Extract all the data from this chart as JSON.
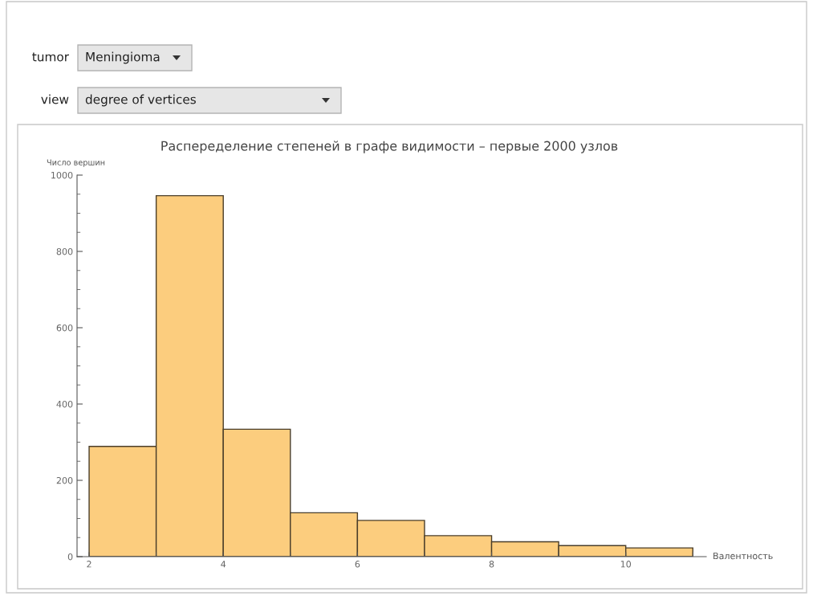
{
  "chart_data": {
    "type": "histogram",
    "title": "Распеределение степеней в графе видимости – первые 2000 узлов",
    "xlabel": "Валентность",
    "ylabel": "Число вершин",
    "annotations": [
      "tumor",
      "Meningioma",
      "view",
      "degree of vertices"
    ],
    "bins": [
      2,
      3,
      4,
      5,
      6,
      7,
      8,
      9,
      10,
      11
    ],
    "values": [
      289,
      946,
      334,
      115,
      95,
      55,
      39,
      29,
      23
    ],
    "color": "#fccd7e",
    "xlim": [
      1.82,
      11.2
    ],
    "ylim": [
      0,
      1000
    ],
    "xticks": [
      2,
      4,
      6,
      8,
      10,
      {
        "value": 3,
        "label": null
      },
      {
        "value": 5,
        "label": null
      },
      {
        "value": 7,
        "label": null
      },
      {
        "value": 9,
        "label": null
      },
      {
        "value": 11,
        "label": null
      }
    ],
    "yticks": [
      0,
      200,
      400,
      600,
      800,
      1000,
      {
        "value": 50,
        "label": null
      },
      {
        "value": 100,
        "label": null
      },
      {
        "value": 150,
        "label": null
      },
      {
        "value": 250,
        "label": null
      },
      {
        "value": 300,
        "label": null
      },
      {
        "value": 350,
        "label": null
      },
      {
        "value": 450,
        "label": null
      },
      {
        "value": 500,
        "label": null
      },
      {
        "value": 550,
        "label": null
      },
      {
        "value": 650,
        "label": null
      },
      {
        "value": 700,
        "label": null
      },
      {
        "value": 750,
        "label": null
      },
      {
        "value": 850,
        "label": null
      },
      {
        "value": 900,
        "label": null
      },
      {
        "value": 950,
        "label": null
      }
    ],
    "grid": false,
    "legend": false
  }
}
